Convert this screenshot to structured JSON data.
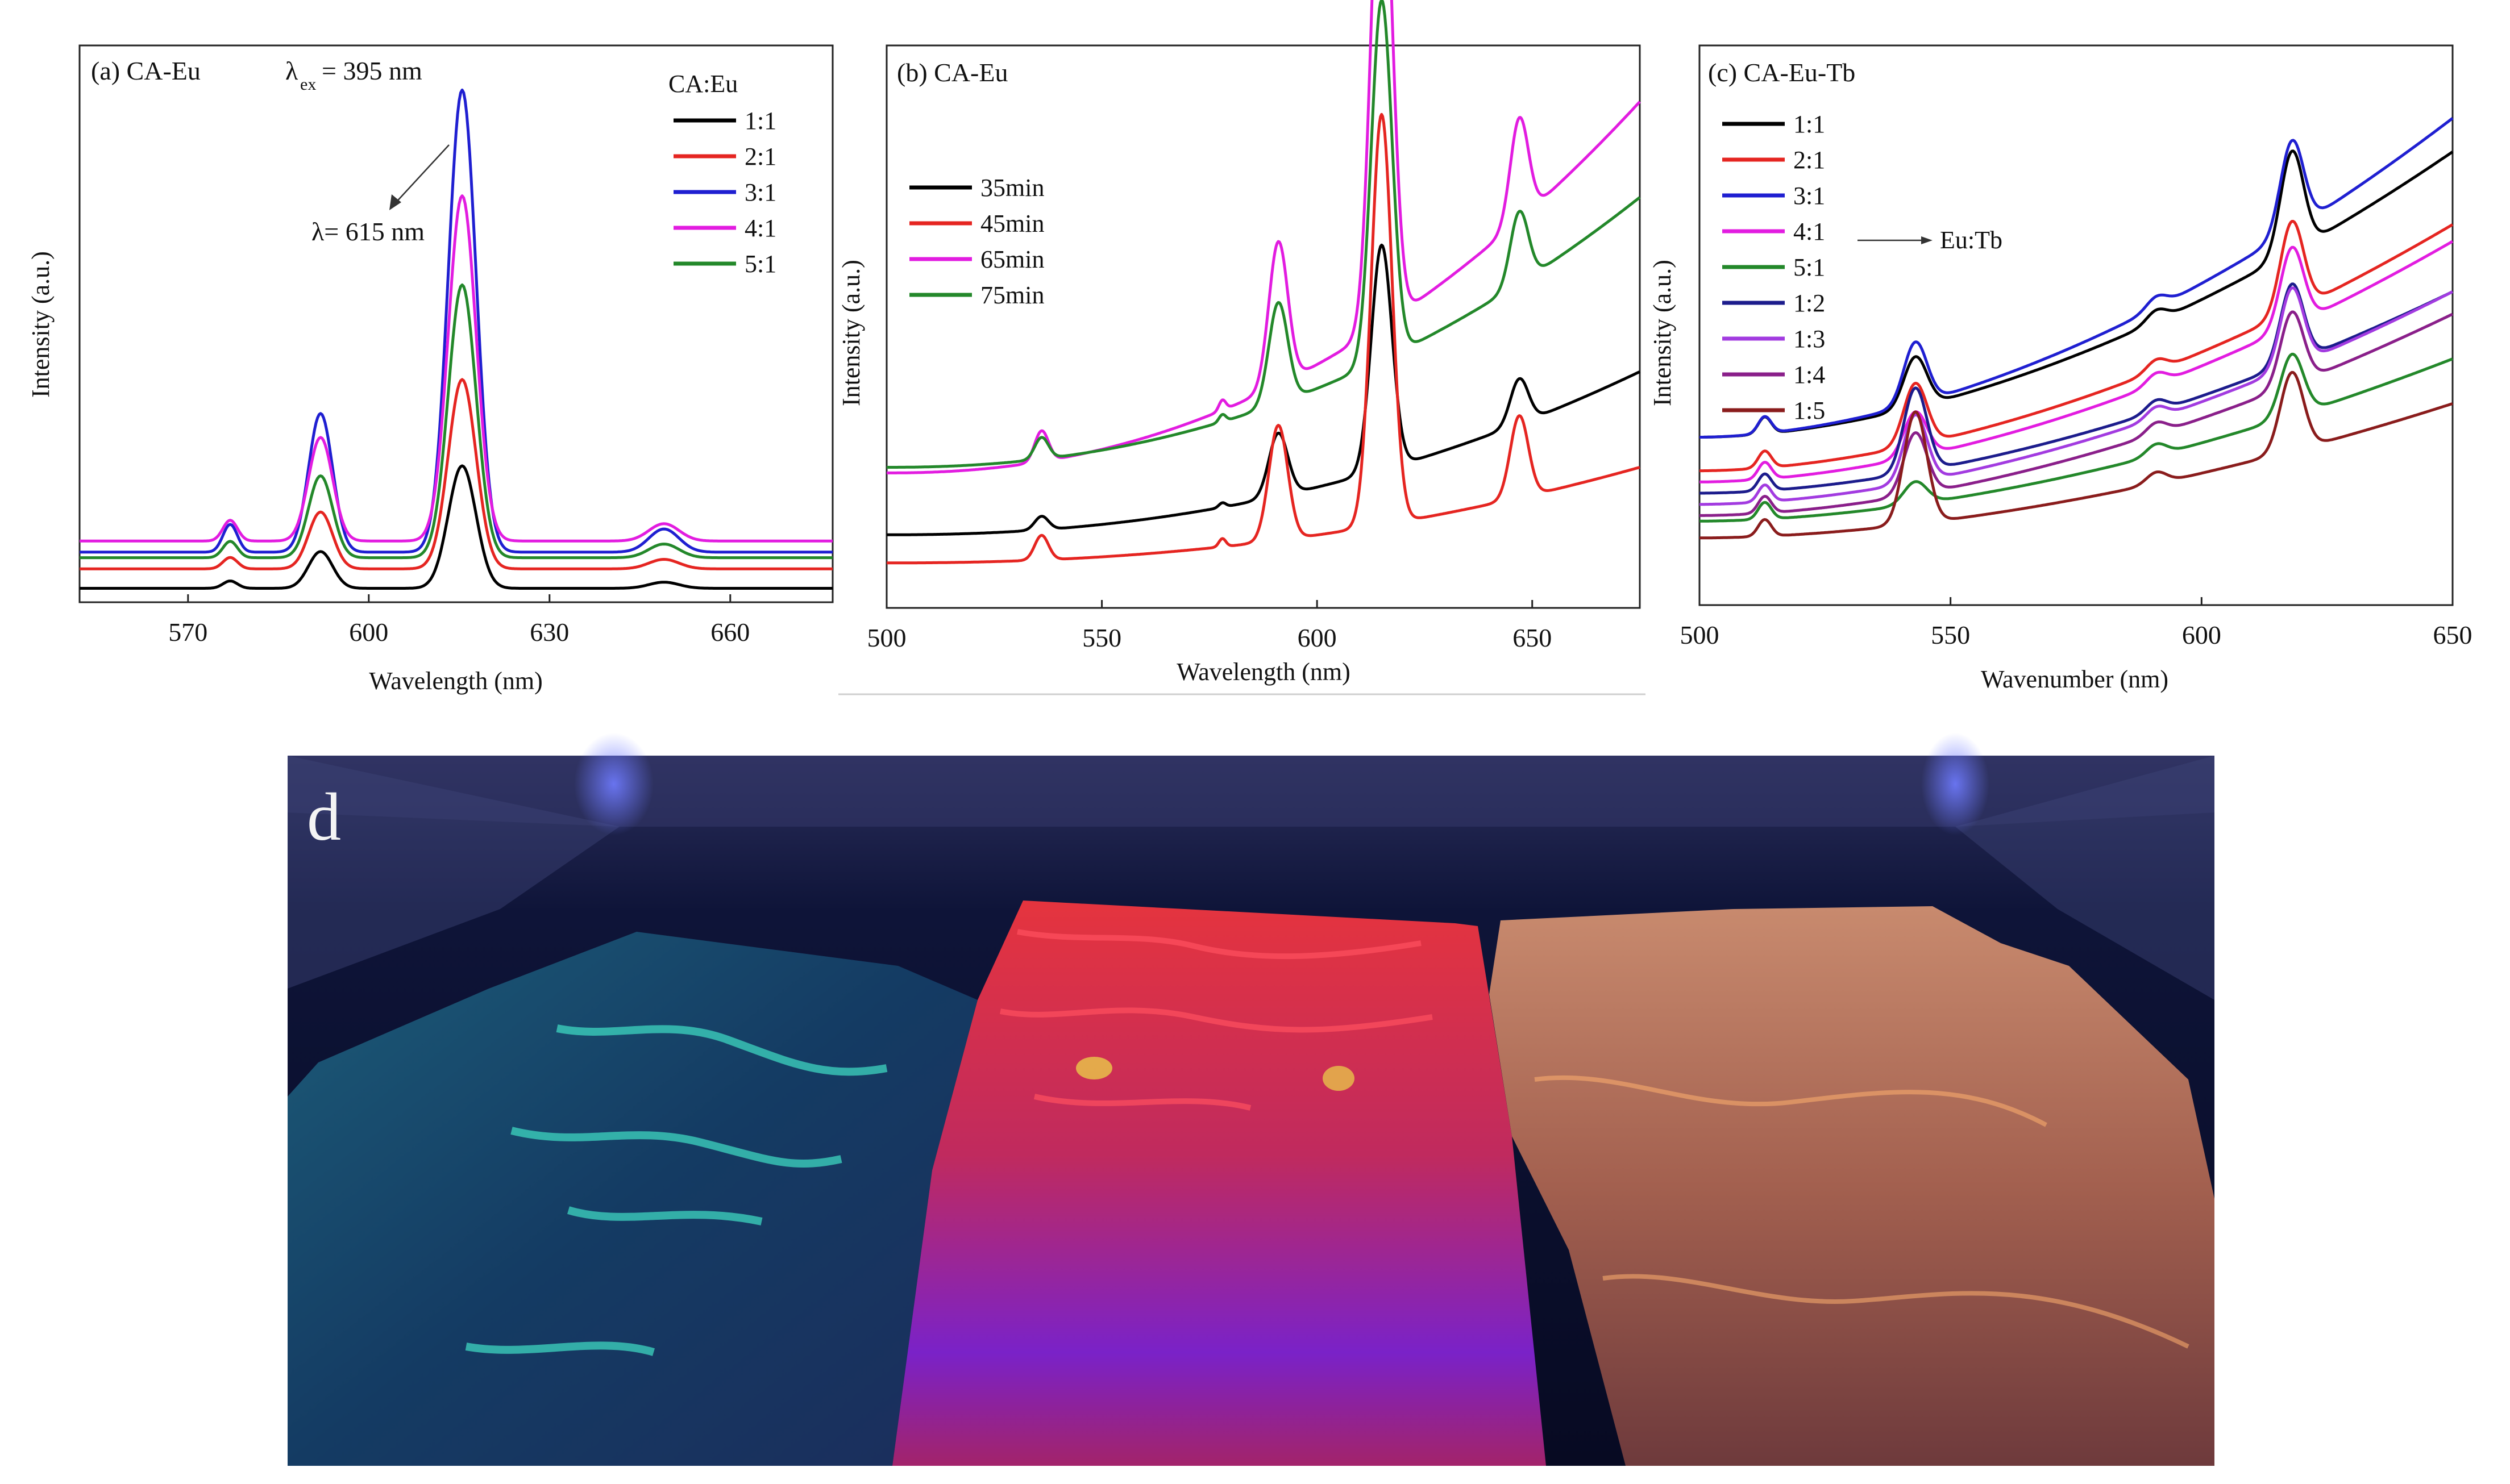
{
  "chart_data": [
    {
      "panel": "a",
      "type": "line",
      "title": "(a)  CA-Eu",
      "excitation_label": {
        "symbol": "λ",
        "subscript": "ex",
        "text": "= 395 nm"
      },
      "xlabel": "Wavelength (nm)",
      "ylabel": "Intensity (a.u.)",
      "xlim": [
        552,
        677
      ],
      "ylim": [
        0,
        100
      ],
      "xticks": [
        570,
        600,
        630,
        660
      ],
      "legend_title": "CA:Eu",
      "annotation": "λ= 615 nm",
      "peaks": [
        {
          "center": 577,
          "width": 1.2,
          "rel": 0.06
        },
        {
          "center": 592,
          "width": 2.0,
          "rel": 0.3
        },
        {
          "center": 615.5,
          "width": 2.3,
          "rel": 1.0
        },
        {
          "center": 649,
          "width": 2.5,
          "rel": 0.05
        }
      ],
      "series": [
        {
          "name": "1:1",
          "color": "#000000",
          "baseline": 2.5,
          "peak": 22
        },
        {
          "name": "2:1",
          "color": "#e52521",
          "baseline": 6,
          "peak": 34
        },
        {
          "name": "3:1",
          "color": "#1f1fd1",
          "baseline": 9,
          "peak": 83
        },
        {
          "name": "4:1",
          "color": "#e21ce0",
          "baseline": 11,
          "peak": 62
        },
        {
          "name": "5:1",
          "color": "#23882a",
          "baseline": 8,
          "peak": 49
        }
      ]
    },
    {
      "panel": "b",
      "type": "line",
      "title": "(b)  CA-Eu",
      "xlabel": "Wavelength (nm)",
      "ylabel": "Intensity (a.u.)",
      "xlim": [
        500,
        675
      ],
      "ylim": [
        0,
        100
      ],
      "xticks": [
        500,
        550,
        600,
        650
      ],
      "peaks": [
        {
          "center": 536,
          "width": 1.6,
          "rel": 0.06
        },
        {
          "center": 578,
          "width": 0.8,
          "rel": 0.02
        },
        {
          "center": 591,
          "width": 2.2,
          "rel": 0.28
        },
        {
          "center": 615,
          "width": 2.4,
          "rel": 1.0
        },
        {
          "center": 647,
          "width": 2.1,
          "rel": 0.2
        }
      ],
      "series": [
        {
          "name": "35min",
          "color": "#000000",
          "start": 13,
          "end": 42,
          "peak": 40
        },
        {
          "name": "45min",
          "color": "#e52521",
          "start": 8,
          "end": 25,
          "peak": 73
        },
        {
          "name": "65min",
          "color": "#e21ce0",
          "start": 24,
          "end": 90,
          "peak": 91
        },
        {
          "name": "75min",
          "color": "#23882a",
          "start": 25,
          "end": 73,
          "peak": 64
        }
      ]
    },
    {
      "panel": "c",
      "type": "line",
      "title": "(c)  CA-Eu-Tb",
      "xlabel": "Wavenumber (nm)",
      "ylabel": "Intensity (a.u.)",
      "xlim": [
        500,
        650
      ],
      "ylim": [
        0,
        100
      ],
      "xticks": [
        500,
        550,
        600,
        650
      ],
      "legend_annotation": "Eu:Tb",
      "series": [
        {
          "name": "1:1",
          "color": "#000000",
          "start": 30,
          "end": 81,
          "tb": 9,
          "eu": 18
        },
        {
          "name": "2:1",
          "color": "#e52521",
          "start": 24,
          "end": 68,
          "tb": 11,
          "eu": 16
        },
        {
          "name": "3:1",
          "color": "#1f1fd1",
          "start": 30,
          "end": 87,
          "tb": 11,
          "eu": 16
        },
        {
          "name": "4:1",
          "color": "#e21ce0",
          "start": 22,
          "end": 65,
          "tb": 8,
          "eu": 14
        },
        {
          "name": "5:1",
          "color": "#23882a",
          "start": 15,
          "end": 44,
          "tb": 4,
          "eu": 11
        },
        {
          "name": "1:2",
          "color": "#1c1c8c",
          "start": 20,
          "end": 56,
          "tb": 15,
          "eu": 14
        },
        {
          "name": "1:3",
          "color": "#a23be0",
          "start": 18,
          "end": 56,
          "tb": 12,
          "eu": 14
        },
        {
          "name": "1:4",
          "color": "#8a1f8a",
          "start": 16,
          "end": 52,
          "tb": 11,
          "eu": 13
        },
        {
          "name": "1:5",
          "color": "#8a1c1c",
          "start": 12,
          "end": 36,
          "tb": 20,
          "eu": 14
        }
      ]
    }
  ],
  "photo": {
    "label": "d",
    "film_colors": [
      "#2a9fb0",
      "#ff3a50",
      "#ffb27a"
    ]
  }
}
